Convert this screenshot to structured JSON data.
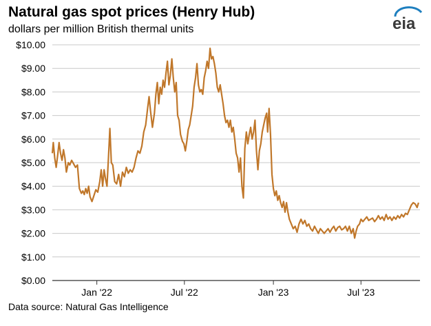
{
  "title": "Natural gas spot prices (Henry Hub)",
  "subtitle": "dollars per million British thermal units",
  "source": "Data source: Natural Gas Intelligence",
  "logo": {
    "text": "eia",
    "icon": "eia-logo-icon"
  },
  "colors": {
    "line": "#C0772A",
    "grid": "#C8C8C8",
    "axis": "#333333",
    "logo": "#1E7FBF"
  },
  "chart_data": {
    "type": "line",
    "title": "Natural gas spot prices (Henry Hub)",
    "ylabel": "dollars per million British thermal units",
    "xlabel": "",
    "ylim": [
      0,
      10
    ],
    "xlim": [
      "2021-10-01",
      "2023-10-31"
    ],
    "grid": true,
    "yticks": [
      0,
      1,
      2,
      3,
      4,
      5,
      6,
      7,
      8,
      9,
      10
    ],
    "ytick_labels": [
      "$0.00",
      "$1.00",
      "$2.00",
      "$3.00",
      "$4.00",
      "$5.00",
      "$6.00",
      "$7.00",
      "$8.00",
      "$9.00",
      "$10.00"
    ],
    "xticks": [
      "2022-01-01",
      "2022-07-01",
      "2023-01-01",
      "2023-07-01"
    ],
    "xtick_labels": [
      "Jan '22",
      "Jul '22",
      "Jan '23",
      "Jul '23"
    ],
    "series": [
      {
        "color": "#C0772A",
        "points": [
          [
            "2021-10-01",
            5.4
          ],
          [
            "2021-10-03",
            5.85
          ],
          [
            "2021-10-06",
            5.2
          ],
          [
            "2021-10-09",
            4.8
          ],
          [
            "2021-10-12",
            5.3
          ],
          [
            "2021-10-15",
            5.85
          ],
          [
            "2021-10-18",
            5.4
          ],
          [
            "2021-10-21",
            5.1
          ],
          [
            "2021-10-24",
            5.55
          ],
          [
            "2021-10-27",
            5.2
          ],
          [
            "2021-10-30",
            4.6
          ],
          [
            "2021-11-03",
            5.0
          ],
          [
            "2021-11-06",
            4.9
          ],
          [
            "2021-11-10",
            5.1
          ],
          [
            "2021-11-14",
            4.95
          ],
          [
            "2021-11-18",
            4.8
          ],
          [
            "2021-11-22",
            4.9
          ],
          [
            "2021-11-26",
            3.9
          ],
          [
            "2021-11-30",
            3.7
          ],
          [
            "2021-12-03",
            3.8
          ],
          [
            "2021-12-06",
            3.65
          ],
          [
            "2021-12-09",
            3.9
          ],
          [
            "2021-12-12",
            3.7
          ],
          [
            "2021-12-15",
            4.0
          ],
          [
            "2021-12-18",
            3.55
          ],
          [
            "2021-12-22",
            3.35
          ],
          [
            "2021-12-26",
            3.6
          ],
          [
            "2021-12-30",
            3.85
          ],
          [
            "2022-01-03",
            3.75
          ],
          [
            "2022-01-07",
            4.2
          ],
          [
            "2022-01-10",
            4.7
          ],
          [
            "2022-01-13",
            4.0
          ],
          [
            "2022-01-16",
            4.7
          ],
          [
            "2022-01-19",
            4.3
          ],
          [
            "2022-01-22",
            4.0
          ],
          [
            "2022-01-25",
            5.2
          ],
          [
            "2022-01-28",
            6.45
          ],
          [
            "2022-01-31",
            5.0
          ],
          [
            "2022-02-03",
            4.9
          ],
          [
            "2022-02-07",
            4.2
          ],
          [
            "2022-02-11",
            4.1
          ],
          [
            "2022-02-15",
            4.5
          ],
          [
            "2022-02-19",
            4.0
          ],
          [
            "2022-02-23",
            4.6
          ],
          [
            "2022-02-27",
            4.4
          ],
          [
            "2022-03-03",
            4.8
          ],
          [
            "2022-03-07",
            4.55
          ],
          [
            "2022-03-11",
            4.7
          ],
          [
            "2022-03-15",
            4.6
          ],
          [
            "2022-03-19",
            4.8
          ],
          [
            "2022-03-23",
            5.2
          ],
          [
            "2022-03-27",
            5.5
          ],
          [
            "2022-03-31",
            5.4
          ],
          [
            "2022-04-04",
            5.7
          ],
          [
            "2022-04-08",
            6.3
          ],
          [
            "2022-04-12",
            6.6
          ],
          [
            "2022-04-16",
            7.3
          ],
          [
            "2022-04-19",
            7.8
          ],
          [
            "2022-04-22",
            7.2
          ],
          [
            "2022-04-26",
            6.5
          ],
          [
            "2022-04-30",
            7.1
          ],
          [
            "2022-05-03",
            7.9
          ],
          [
            "2022-05-06",
            8.4
          ],
          [
            "2022-05-09",
            7.5
          ],
          [
            "2022-05-12",
            8.2
          ],
          [
            "2022-05-15",
            7.9
          ],
          [
            "2022-05-18",
            8.5
          ],
          [
            "2022-05-21",
            8.2
          ],
          [
            "2022-05-24",
            8.8
          ],
          [
            "2022-05-27",
            9.3
          ],
          [
            "2022-05-30",
            8.3
          ],
          [
            "2022-06-02",
            8.7
          ],
          [
            "2022-06-05",
            9.4
          ],
          [
            "2022-06-08",
            8.6
          ],
          [
            "2022-06-11",
            8.0
          ],
          [
            "2022-06-14",
            8.4
          ],
          [
            "2022-06-17",
            7.0
          ],
          [
            "2022-06-20",
            6.8
          ],
          [
            "2022-06-23",
            6.2
          ],
          [
            "2022-06-27",
            5.9
          ],
          [
            "2022-06-30",
            5.8
          ],
          [
            "2022-07-03",
            5.5
          ],
          [
            "2022-07-06",
            5.9
          ],
          [
            "2022-07-09",
            6.4
          ],
          [
            "2022-07-12",
            6.6
          ],
          [
            "2022-07-15",
            7.0
          ],
          [
            "2022-07-18",
            7.4
          ],
          [
            "2022-07-21",
            8.2
          ],
          [
            "2022-07-24",
            8.6
          ],
          [
            "2022-07-27",
            9.2
          ],
          [
            "2022-07-30",
            8.3
          ],
          [
            "2022-08-02",
            8.0
          ],
          [
            "2022-08-05",
            8.1
          ],
          [
            "2022-08-08",
            7.9
          ],
          [
            "2022-08-11",
            8.6
          ],
          [
            "2022-08-14",
            8.9
          ],
          [
            "2022-08-17",
            9.3
          ],
          [
            "2022-08-20",
            9.0
          ],
          [
            "2022-08-23",
            9.85
          ],
          [
            "2022-08-26",
            9.4
          ],
          [
            "2022-08-29",
            9.5
          ],
          [
            "2022-09-01",
            9.2
          ],
          [
            "2022-09-04",
            8.8
          ],
          [
            "2022-09-07",
            8.2
          ],
          [
            "2022-09-10",
            8.0
          ],
          [
            "2022-09-13",
            8.3
          ],
          [
            "2022-09-16",
            7.9
          ],
          [
            "2022-09-19",
            7.5
          ],
          [
            "2022-09-22",
            7.0
          ],
          [
            "2022-09-25",
            6.7
          ],
          [
            "2022-09-28",
            6.8
          ],
          [
            "2022-10-01",
            6.5
          ],
          [
            "2022-10-04",
            6.8
          ],
          [
            "2022-10-07",
            6.3
          ],
          [
            "2022-10-10",
            6.5
          ],
          [
            "2022-10-13",
            6.0
          ],
          [
            "2022-10-16",
            5.4
          ],
          [
            "2022-10-19",
            5.2
          ],
          [
            "2022-10-22",
            4.6
          ],
          [
            "2022-10-25",
            5.2
          ],
          [
            "2022-10-28",
            4.0
          ],
          [
            "2022-10-31",
            3.5
          ],
          [
            "2022-11-03",
            5.6
          ],
          [
            "2022-11-06",
            6.3
          ],
          [
            "2022-11-09",
            5.8
          ],
          [
            "2022-11-12",
            6.2
          ],
          [
            "2022-11-15",
            6.5
          ],
          [
            "2022-11-18",
            6.0
          ],
          [
            "2022-11-21",
            6.3
          ],
          [
            "2022-11-24",
            6.8
          ],
          [
            "2022-11-27",
            5.5
          ],
          [
            "2022-11-30",
            4.7
          ],
          [
            "2022-12-03",
            5.5
          ],
          [
            "2022-12-06",
            5.8
          ],
          [
            "2022-12-09",
            6.3
          ],
          [
            "2022-12-12",
            6.6
          ],
          [
            "2022-12-15",
            6.9
          ],
          [
            "2022-12-18",
            7.1
          ],
          [
            "2022-12-20",
            6.3
          ],
          [
            "2022-12-23",
            7.3
          ],
          [
            "2022-12-26",
            6.2
          ],
          [
            "2022-12-29",
            4.5
          ],
          [
            "2023-01-01",
            3.9
          ],
          [
            "2023-01-04",
            3.6
          ],
          [
            "2023-01-07",
            3.8
          ],
          [
            "2023-01-10",
            3.4
          ],
          [
            "2023-01-13",
            3.6
          ],
          [
            "2023-01-16",
            3.3
          ],
          [
            "2023-01-19",
            3.1
          ],
          [
            "2023-01-22",
            3.35
          ],
          [
            "2023-01-25",
            2.9
          ],
          [
            "2023-01-28",
            3.3
          ],
          [
            "2023-01-31",
            2.9
          ],
          [
            "2023-02-03",
            2.6
          ],
          [
            "2023-02-07",
            2.4
          ],
          [
            "2023-02-11",
            2.2
          ],
          [
            "2023-02-15",
            2.3
          ],
          [
            "2023-02-19",
            2.05
          ],
          [
            "2023-02-23",
            2.4
          ],
          [
            "2023-02-27",
            2.6
          ],
          [
            "2023-03-03",
            2.4
          ],
          [
            "2023-03-07",
            2.55
          ],
          [
            "2023-03-11",
            2.3
          ],
          [
            "2023-03-15",
            2.4
          ],
          [
            "2023-03-19",
            2.2
          ],
          [
            "2023-03-23",
            2.1
          ],
          [
            "2023-03-27",
            2.3
          ],
          [
            "2023-03-31",
            2.15
          ],
          [
            "2023-04-04",
            2.0
          ],
          [
            "2023-04-08",
            2.2
          ],
          [
            "2023-04-12",
            2.1
          ],
          [
            "2023-04-16",
            2.0
          ],
          [
            "2023-04-20",
            2.1
          ],
          [
            "2023-04-24",
            2.2
          ],
          [
            "2023-04-28",
            2.05
          ],
          [
            "2023-05-02",
            2.2
          ],
          [
            "2023-05-06",
            2.3
          ],
          [
            "2023-05-10",
            2.1
          ],
          [
            "2023-05-14",
            2.25
          ],
          [
            "2023-05-18",
            2.3
          ],
          [
            "2023-05-22",
            2.15
          ],
          [
            "2023-05-26",
            2.2
          ],
          [
            "2023-05-30",
            2.3
          ],
          [
            "2023-06-03",
            2.1
          ],
          [
            "2023-06-07",
            2.3
          ],
          [
            "2023-06-11",
            2.0
          ],
          [
            "2023-06-15",
            2.2
          ],
          [
            "2023-06-18",
            1.8
          ],
          [
            "2023-06-21",
            2.1
          ],
          [
            "2023-06-24",
            2.3
          ],
          [
            "2023-06-28",
            2.4
          ],
          [
            "2023-07-01",
            2.6
          ],
          [
            "2023-07-05",
            2.5
          ],
          [
            "2023-07-09",
            2.6
          ],
          [
            "2023-07-13",
            2.7
          ],
          [
            "2023-07-17",
            2.55
          ],
          [
            "2023-07-21",
            2.6
          ],
          [
            "2023-07-25",
            2.65
          ],
          [
            "2023-07-29",
            2.5
          ],
          [
            "2023-08-02",
            2.6
          ],
          [
            "2023-08-06",
            2.75
          ],
          [
            "2023-08-10",
            2.6
          ],
          [
            "2023-08-14",
            2.7
          ],
          [
            "2023-08-18",
            2.55
          ],
          [
            "2023-08-22",
            2.8
          ],
          [
            "2023-08-26",
            2.6
          ],
          [
            "2023-08-30",
            2.7
          ],
          [
            "2023-09-03",
            2.55
          ],
          [
            "2023-09-07",
            2.7
          ],
          [
            "2023-09-11",
            2.6
          ],
          [
            "2023-09-15",
            2.75
          ],
          [
            "2023-09-19",
            2.65
          ],
          [
            "2023-09-23",
            2.8
          ],
          [
            "2023-09-27",
            2.7
          ],
          [
            "2023-10-01",
            2.85
          ],
          [
            "2023-10-05",
            2.8
          ],
          [
            "2023-10-09",
            3.0
          ],
          [
            "2023-10-13",
            3.2
          ],
          [
            "2023-10-17",
            3.3
          ],
          [
            "2023-10-21",
            3.25
          ],
          [
            "2023-10-25",
            3.1
          ],
          [
            "2023-10-28",
            3.3
          ]
        ]
      }
    ]
  }
}
